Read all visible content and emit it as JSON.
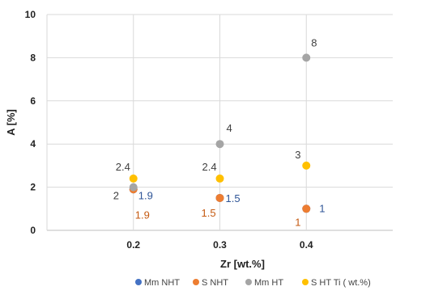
{
  "chart_data": {
    "type": "scatter",
    "title": "",
    "xlabel": "Zr [wt.%]",
    "ylabel": "A [%]",
    "xlim": [
      0.1,
      0.5
    ],
    "ylim": [
      0,
      10
    ],
    "x_ticks": [
      "0.2",
      "0.3",
      "0.4"
    ],
    "y_ticks": [
      "0",
      "2",
      "4",
      "6",
      "8",
      "10"
    ],
    "grid": true,
    "legend_position": "bottom",
    "series": [
      {
        "name": "Mm NHT",
        "color": "#4472C4",
        "points": [
          {
            "x": 0.2,
            "y": 1.9,
            "label": "1.9"
          },
          {
            "x": 0.3,
            "y": 1.5,
            "label": "1.5"
          },
          {
            "x": 0.4,
            "y": 1,
            "label": "1"
          }
        ]
      },
      {
        "name": "S NHT",
        "color": "#ED7D31",
        "points": [
          {
            "x": 0.2,
            "y": 1.9,
            "label": "1.9"
          },
          {
            "x": 0.3,
            "y": 1.5,
            "label": "1.5"
          },
          {
            "x": 0.4,
            "y": 1,
            "label": "1"
          }
        ]
      },
      {
        "name": "Mm HT",
        "color": "#A5A5A5",
        "points": [
          {
            "x": 0.2,
            "y": 2,
            "label": "2"
          },
          {
            "x": 0.3,
            "y": 4,
            "label": "4"
          },
          {
            "x": 0.4,
            "y": 8,
            "label": "8"
          }
        ]
      },
      {
        "name": "S HT  Ti ( wt.%)",
        "color": "#FFC000",
        "points": [
          {
            "x": 0.2,
            "y": 2.4,
            "label": "2.4"
          },
          {
            "x": 0.3,
            "y": 2.4,
            "label": "2.4"
          },
          {
            "x": 0.4,
            "y": 3,
            "label": "3"
          }
        ]
      }
    ]
  }
}
